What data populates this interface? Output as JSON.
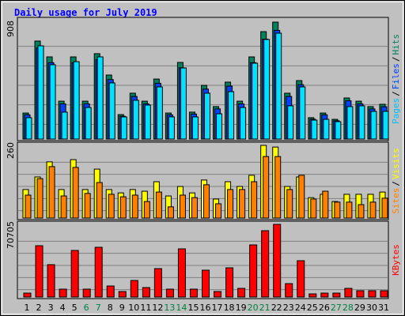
{
  "chart_data": [
    {
      "type": "bar",
      "title": "Daily usage for July 2019",
      "legend_separator": "/",
      "ylim": [
        0,
        908
      ],
      "yticks": [
        908
      ],
      "series": [
        {
          "name": "Hits",
          "color": "#00805c",
          "label_color": "#00805c",
          "values": [
            202,
            761,
            638,
            294,
            638,
            294,
            663,
            497,
            190,
            356,
            294,
            466,
            202,
            595,
            209,
            417,
            252,
            442,
            294,
            638,
            834,
            908,
            356,
            454,
            166,
            202,
            153,
            319,
            294,
            252,
            270
          ]
        },
        {
          "name": "Files",
          "color": "#0040ff",
          "label_color": "#0040ff",
          "values": [
            188,
            708,
            593,
            273,
            593,
            273,
            617,
            462,
            177,
            331,
            273,
            433,
            188,
            553,
            194,
            388,
            234,
            411,
            273,
            593,
            776,
            844,
            331,
            422,
            154,
            188,
            142,
            297,
            273,
            234,
            251
          ]
        },
        {
          "name": "Pages",
          "color": "#00e0ff",
          "label_color": "#00c0ff",
          "values": [
            166,
            724,
            577,
            209,
            601,
            245,
            638,
            436,
            172,
            301,
            264,
            405,
            172,
            552,
            172,
            356,
            196,
            368,
            245,
            589,
            773,
            822,
            258,
            405,
            147,
            153,
            135,
            252,
            258,
            215,
            215
          ]
        }
      ]
    },
    {
      "type": "bar",
      "legend_separator": "/",
      "ylim": [
        0,
        260
      ],
      "yticks": [
        260
      ],
      "series": [
        {
          "name": "Visits",
          "color": "#ffff00",
          "label_color": "#ffff00",
          "values": [
            102,
            147,
            201,
            102,
            209,
            102,
            175,
            102,
            90,
            102,
            96,
            130,
            79,
            113,
            90,
            136,
            68,
            130,
            113,
            153,
            260,
            254,
            113,
            147,
            73,
            85,
            59,
            85,
            85,
            85,
            93
          ]
        },
        {
          "name": "Sites",
          "color": "#ff8000",
          "label_color": "#ff8000",
          "values": [
            82,
            141,
            184,
            79,
            181,
            88,
            127,
            85,
            76,
            82,
            59,
            93,
            40,
            82,
            73,
            119,
            51,
            102,
            102,
            130,
            220,
            220,
            102,
            153,
            68,
            96,
            57,
            57,
            48,
            57,
            71
          ]
        }
      ]
    },
    {
      "type": "bar",
      "ylim": [
        0,
        70705
      ],
      "yticks": [
        70705
      ],
      "categories": [
        "1",
        "2",
        "3",
        "4",
        "5",
        "6",
        "7",
        "8",
        "9",
        "10",
        "11",
        "12",
        "13",
        "14",
        "15",
        "16",
        "17",
        "18",
        "19",
        "20",
        "21",
        "22",
        "23",
        "24",
        "25",
        "26",
        "27",
        "28",
        "29",
        "30",
        "31"
      ],
      "highlight_categories": [
        "6",
        "7",
        "13",
        "14",
        "20",
        "21",
        "27",
        "28"
      ],
      "highlight_color": "#008040",
      "series": [
        {
          "name": "KBytes",
          "color": "#ff0000",
          "label_color": "#ff0000",
          "values": [
            3843,
            49954,
            31510,
            7685,
            45343,
            7685,
            48417,
            10759,
            5380,
            16139,
            9222,
            27667,
            7685,
            46880,
            7685,
            26130,
            5380,
            28435,
            8454,
            50723,
            64557,
            70705,
            13065,
            35353,
            3074,
            3843,
            3843,
            8454,
            6148,
            6148,
            6148
          ]
        }
      ]
    }
  ]
}
